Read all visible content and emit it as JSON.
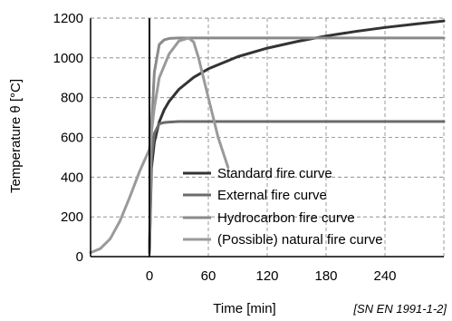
{
  "chart_data": {
    "type": "line",
    "xlabel": "Time [min]",
    "ylabel": "Temperature θ [°C]",
    "source_note": "[SN EN 1991-1-2]",
    "xlim": [
      -60,
      300
    ],
    "ylim": [
      0,
      1200
    ],
    "x_ticks": [
      0,
      60,
      120,
      180,
      240
    ],
    "y_ticks": [
      0,
      200,
      400,
      600,
      800,
      1000,
      1200
    ],
    "grid": true,
    "legend_position": "bottom-right",
    "colors": {
      "standard": "#333333",
      "external": "#6b6b6b",
      "hydrocarbon": "#8a8a8a",
      "natural": "#9a9a9a",
      "axis": "#000000",
      "grid": "#808080"
    },
    "series": [
      {
        "name": "Standard fire curve",
        "key": "standard",
        "x": [
          0,
          2,
          5,
          10,
          15,
          20,
          30,
          45,
          60,
          90,
          120,
          150,
          180,
          210,
          240,
          270,
          300
        ],
        "y": [
          20,
          445,
          576,
          678,
          739,
          781,
          842,
          902,
          945,
          1006,
          1049,
          1082,
          1110,
          1133,
          1153,
          1170,
          1186
        ]
      },
      {
        "name": "External fire curve",
        "key": "external",
        "x": [
          0,
          2,
          5,
          10,
          15,
          20,
          30,
          60,
          120,
          180,
          240,
          300
        ],
        "y": [
          20,
          500,
          620,
          668,
          675,
          677,
          680,
          680,
          680,
          680,
          680,
          680
        ]
      },
      {
        "name": "Hydrocarbon fire curve",
        "key": "hydrocarbon",
        "x": [
          0,
          2,
          5,
          10,
          15,
          20,
          30,
          60,
          120,
          180,
          240,
          300
        ],
        "y": [
          20,
          650,
          928,
          1067,
          1091,
          1098,
          1100,
          1100,
          1100,
          1100,
          1100,
          1100
        ]
      },
      {
        "name": "(Possible) natural fire curve",
        "key": "natural",
        "x": [
          -60,
          -50,
          -40,
          -30,
          -20,
          -10,
          0,
          5,
          10,
          20,
          30,
          40,
          45,
          50,
          60,
          70,
          80
        ],
        "y": [
          20,
          40,
          90,
          180,
          300,
          430,
          540,
          750,
          900,
          1020,
          1085,
          1100,
          1080,
          1000,
          800,
          600,
          450
        ]
      }
    ]
  }
}
